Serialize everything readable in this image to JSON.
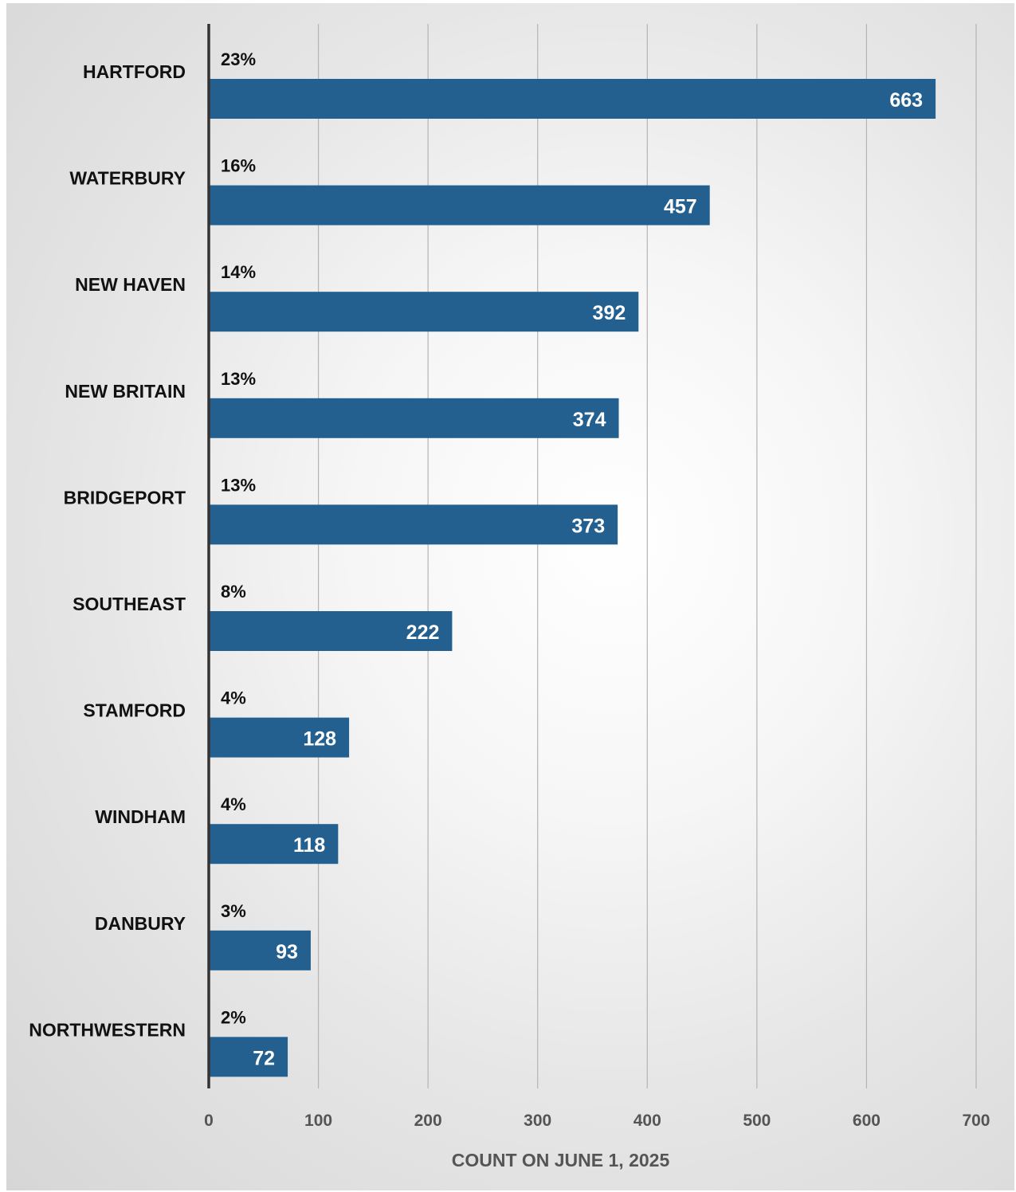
{
  "chart_data": {
    "type": "bar",
    "orientation": "horizontal",
    "categories": [
      "HARTFORD",
      "WATERBURY",
      "NEW HAVEN",
      "NEW BRITAIN",
      "BRIDGEPORT",
      "SOUTHEAST",
      "STAMFORD",
      "WINDHAM",
      "DANBURY",
      "NORTHWESTERN"
    ],
    "values": [
      663,
      457,
      392,
      374,
      373,
      222,
      128,
      118,
      93,
      72
    ],
    "percent_labels": [
      "23%",
      "16%",
      "14%",
      "13%",
      "13%",
      "8%",
      "4%",
      "4%",
      "3%",
      "2%"
    ],
    "value_labels": [
      "663",
      "457",
      "392",
      "374",
      "373",
      "222",
      "128",
      "118",
      "93",
      "72"
    ],
    "xlabel": "COUNT ON JUNE 1, 2025",
    "ylabel": "",
    "title": "",
    "xlim": [
      0,
      700
    ],
    "xticks": [
      0,
      100,
      200,
      300,
      400,
      500,
      600,
      700
    ],
    "xtick_labels": [
      "0",
      "100",
      "200",
      "300",
      "400",
      "500",
      "600",
      "700"
    ],
    "grid": "vertical",
    "legend": "none",
    "colors": {
      "bar": "#24608F",
      "gridline": "#b4b4b4",
      "axis": "#333333"
    }
  }
}
